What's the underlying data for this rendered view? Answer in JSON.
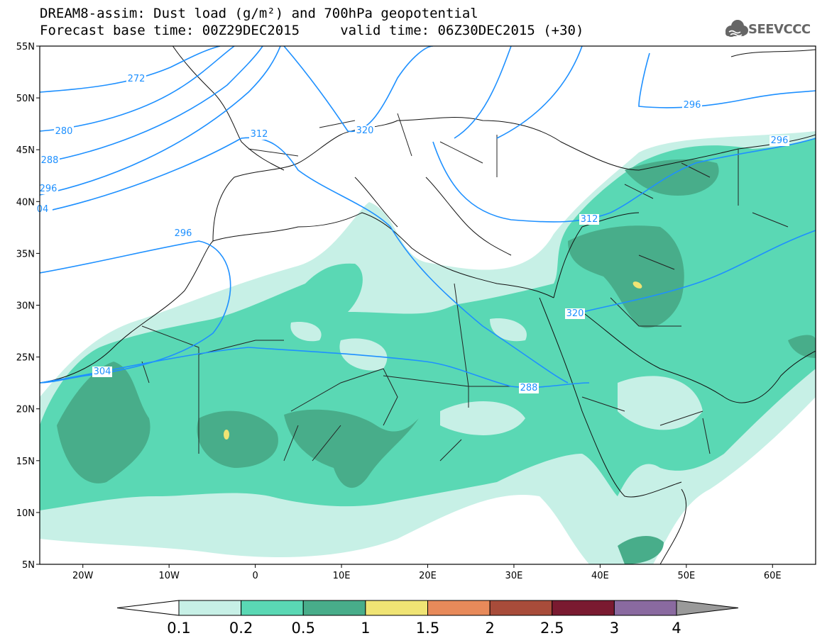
{
  "header": {
    "line1": "DREAM8-assim: Dust load (g/m²) and 700hPa geopotential",
    "line2": "Forecast base time: 00Z29DEC2015     valid time: 06Z30DEC2015 (+30)"
  },
  "logo": {
    "text": "SEEVCCC",
    "icon": "cloud-logo-icon"
  },
  "map": {
    "lon_range": [
      -25,
      65
    ],
    "lat_range": [
      5,
      55
    ],
    "lat_ticks": [
      "55N",
      "50N",
      "45N",
      "40N",
      "35N",
      "30N",
      "25N",
      "20N",
      "15N",
      "10N",
      "5N"
    ],
    "lon_ticks": [
      "20W",
      "10W",
      "0",
      "10E",
      "20E",
      "30E",
      "40E",
      "50E",
      "60E"
    ],
    "contour_labels": [
      "272",
      "280",
      "288",
      "296",
      "04",
      "312",
      "320",
      "296",
      "304",
      "312",
      "320",
      "288",
      "296"
    ],
    "contour_color": "#1e90ff"
  },
  "colorbar": {
    "labels": [
      "0.1",
      "0.2",
      "0.5",
      "1",
      "1.5",
      "2",
      "2.5",
      "3",
      "4"
    ],
    "colors": [
      "#c7f0e6",
      "#5ad8b4",
      "#48ad8a",
      "#f0e474",
      "#e88a5a",
      "#a84c3a",
      "#7a1a30",
      "#8a6aa0"
    ],
    "over_color": "#9a9a9a",
    "under_color": "#ffffff"
  }
}
